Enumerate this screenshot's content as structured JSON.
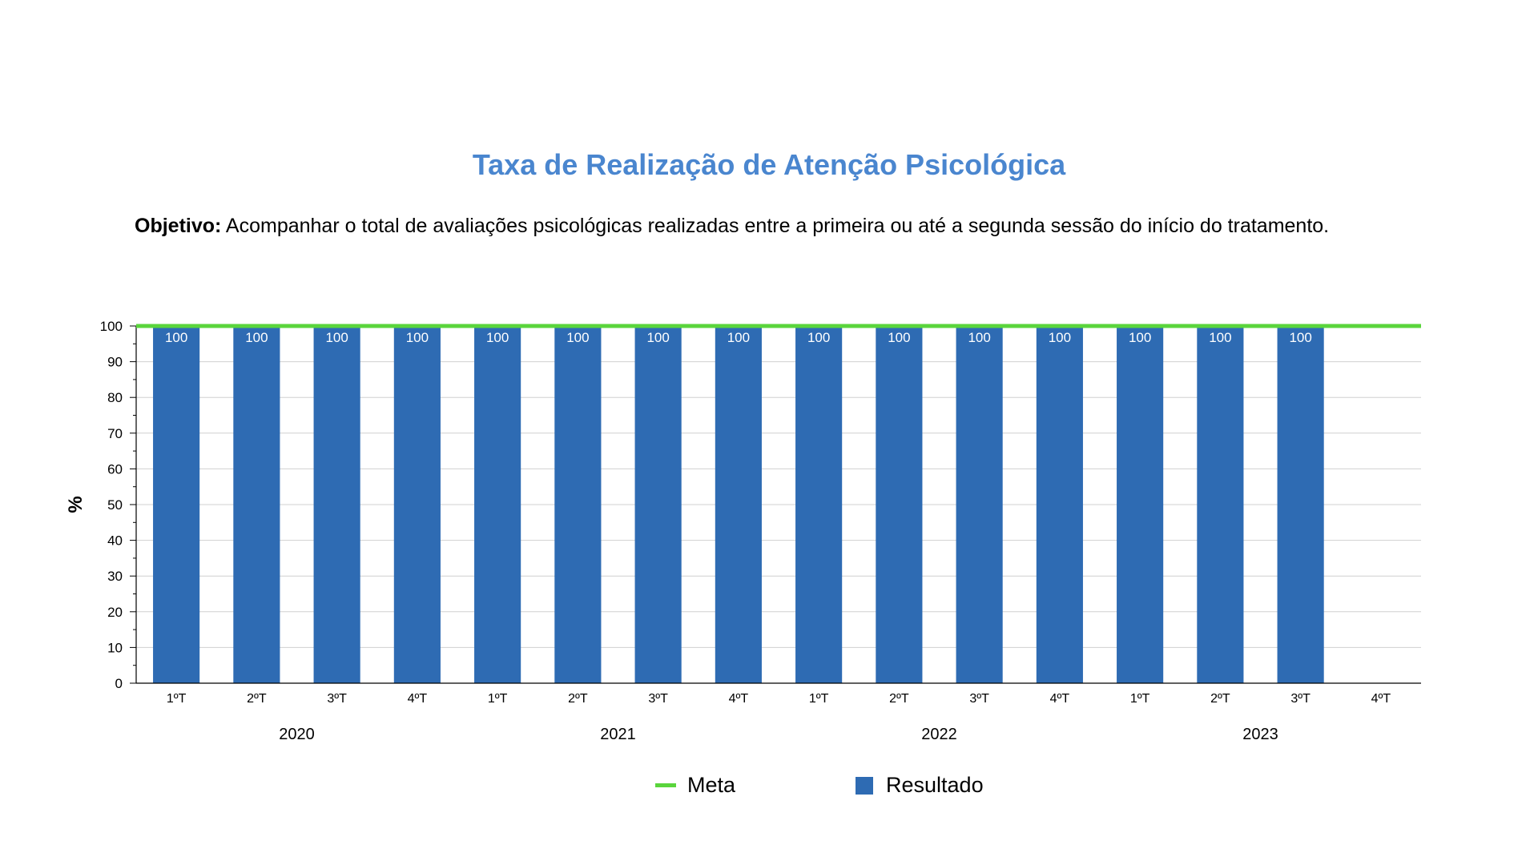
{
  "title": "Taxa de Realização de Atenção Psicológica",
  "objective": {
    "label": "Objetivo:",
    "text": " Acompanhar o total de avaliações psicológicas realizadas entre a primeira ou até a segunda sessão do início do tratamento."
  },
  "legend": {
    "meta": "Meta",
    "resultado": "Resultado"
  },
  "colors": {
    "bar": "#2e6bb3",
    "meta": "#5ad53c",
    "title": "#4a86cf"
  },
  "chart_data": {
    "type": "bar",
    "ylabel": "%",
    "ylim": [
      0,
      100
    ],
    "yticks": [
      0,
      10,
      20,
      30,
      40,
      50,
      60,
      70,
      80,
      90,
      100
    ],
    "categories": [
      "1ºT",
      "2ºT",
      "3ºT",
      "4ºT",
      "1ºT",
      "2ºT",
      "3ºT",
      "4ºT",
      "1ºT",
      "2ºT",
      "3ºT",
      "4ºT",
      "1ºT",
      "2ºT",
      "3ºT",
      "4ºT"
    ],
    "groups": [
      {
        "label": "2020",
        "span": 4
      },
      {
        "label": "2021",
        "span": 4
      },
      {
        "label": "2022",
        "span": 4
      },
      {
        "label": "2023",
        "span": 4
      }
    ],
    "series": [
      {
        "name": "Resultado",
        "type": "bar",
        "values": [
          100,
          100,
          100,
          100,
          100,
          100,
          100,
          100,
          100,
          100,
          100,
          100,
          100,
          100,
          100,
          null
        ]
      },
      {
        "name": "Meta",
        "type": "line",
        "values": [
          100,
          100,
          100,
          100,
          100,
          100,
          100,
          100,
          100,
          100,
          100,
          100,
          100,
          100,
          100,
          100
        ]
      }
    ],
    "grid": true,
    "legend_position": "bottom"
  }
}
